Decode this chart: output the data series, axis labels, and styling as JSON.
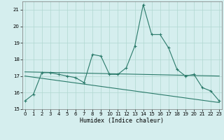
{
  "title": "",
  "xlabel": "Humidex (Indice chaleur)",
  "x": [
    0,
    1,
    2,
    3,
    4,
    5,
    6,
    7,
    8,
    9,
    10,
    11,
    12,
    13,
    14,
    15,
    16,
    17,
    18,
    19,
    20,
    21,
    22,
    23
  ],
  "line1": [
    15.5,
    15.9,
    17.2,
    17.2,
    17.1,
    17.0,
    16.9,
    16.6,
    18.3,
    18.2,
    17.1,
    17.1,
    17.5,
    18.8,
    21.3,
    19.5,
    19.5,
    18.7,
    17.4,
    17.0,
    17.1,
    16.3,
    16.1,
    15.5
  ],
  "line2_x": [
    0,
    23
  ],
  "line2_y": [
    17.25,
    17.0
  ],
  "line3_x": [
    0,
    23
  ],
  "line3_y": [
    17.0,
    15.4
  ],
  "color_main": "#2a7a6a",
  "bg_color": "#d5eeee",
  "grid_color": "#b0d8d0",
  "ylim": [
    15,
    21.5
  ],
  "yticks": [
    15,
    16,
    17,
    18,
    19,
    20,
    21
  ],
  "xlim": [
    -0.3,
    23.3
  ],
  "xticks": [
    0,
    1,
    2,
    3,
    4,
    5,
    6,
    7,
    8,
    9,
    10,
    11,
    12,
    13,
    14,
    15,
    16,
    17,
    18,
    19,
    20,
    21,
    22,
    23
  ],
  "tick_fontsize": 5.0,
  "xlabel_fontsize": 6.0
}
